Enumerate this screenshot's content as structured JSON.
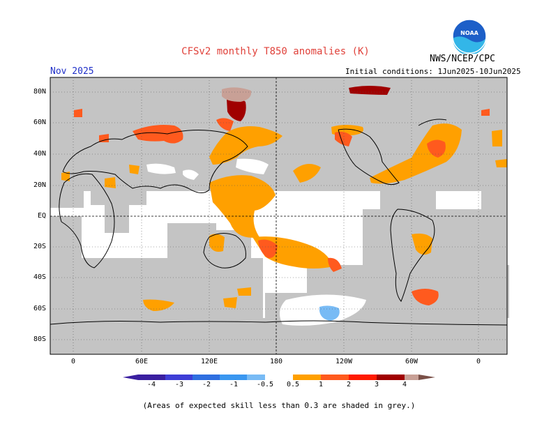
{
  "title": "CFSv2 monthly T850 anomalies (K)",
  "period": "Nov 2025",
  "initial_conditions": "Initial conditions: 1Jun2025-10Jun2025",
  "agency": "NWS/NCEP/CPC",
  "logo_text": "NOAA",
  "footnote": "(Areas of expected skill less than 0.3 are shaded in grey.)",
  "map": {
    "lat_labels": [
      "80N",
      "60N",
      "40N",
      "20N",
      "EQ",
      "20S",
      "40S",
      "60S",
      "80S"
    ],
    "lon_labels": [
      "0",
      "60E",
      "120E",
      "180",
      "120W",
      "60W",
      "0"
    ],
    "grid": "dotted",
    "colors": {
      "low_skill": "#c4c4c4",
      "ocean_neutral": "#ffffff",
      "coast": "#000000"
    }
  },
  "colorbar": {
    "labels": [
      "-4",
      "-3",
      "-2",
      "-1",
      "-0.5",
      "0.5",
      "1",
      "2",
      "3",
      "4"
    ],
    "colors": [
      "#3a1fa0",
      "#3e3ed6",
      "#2f6fe0",
      "#3a97f0",
      "#78bbf5",
      "#ffffff",
      "#ffa000",
      "#ff5a1e",
      "#ff1a00",
      "#a00000",
      "#c8a096",
      "#7a5048"
    ]
  }
}
